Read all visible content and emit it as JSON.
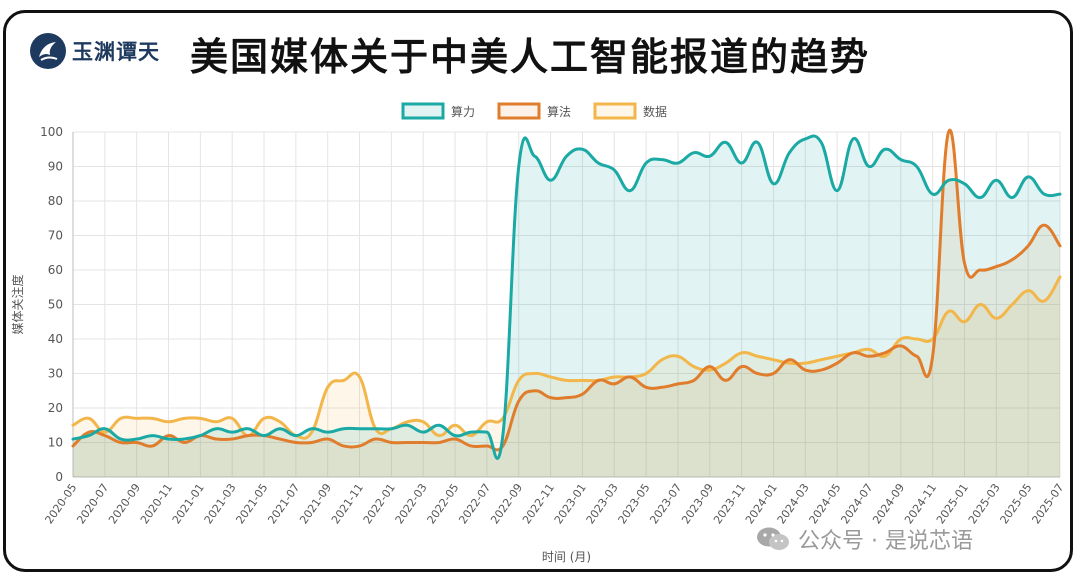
{
  "brand": {
    "name": "玉渊谭天",
    "icon": "brand-seal-icon"
  },
  "headline": "美国媒体关于中美人工智能报道的趋势",
  "watermark": {
    "text": "公众号 · 是说芯语",
    "icon": "wechat-icon"
  },
  "chart_data": {
    "type": "area",
    "title": "",
    "xlabel": "时间 (月)",
    "ylabel": "媒体关注度",
    "ylim": [
      0,
      100
    ],
    "yticks": [
      0,
      10,
      20,
      30,
      40,
      50,
      60,
      70,
      80,
      90,
      100
    ],
    "grid": true,
    "legend_position": "top-center",
    "x": [
      "2020-05",
      "2020-06",
      "2020-07",
      "2020-08",
      "2020-09",
      "2020-10",
      "2020-11",
      "2020-12",
      "2021-01",
      "2021-02",
      "2021-03",
      "2021-04",
      "2021-05",
      "2021-06",
      "2021-07",
      "2021-08",
      "2021-09",
      "2021-10",
      "2021-11",
      "2021-12",
      "2022-01",
      "2022-02",
      "2022-03",
      "2022-04",
      "2022-05",
      "2022-06",
      "2022-07",
      "2022-08",
      "2022-09",
      "2022-10",
      "2022-11",
      "2022-12",
      "2023-01",
      "2023-02",
      "2023-03",
      "2023-04",
      "2023-05",
      "2023-06",
      "2023-07",
      "2023-08",
      "2023-09",
      "2023-10",
      "2023-11",
      "2023-12",
      "2024-01",
      "2024-02",
      "2024-03",
      "2024-04",
      "2024-05",
      "2024-06",
      "2024-07",
      "2024-08",
      "2024-09",
      "2024-10",
      "2024-11",
      "2024-12",
      "2025-01",
      "2025-02",
      "2025-03",
      "2025-04",
      "2025-05",
      "2025-06",
      "2025-07"
    ],
    "xtick_labels": [
      "2020-05",
      "2020-07",
      "2020-09",
      "2020-11",
      "2021-01",
      "2021-03",
      "2021-05",
      "2021-07",
      "2021-09",
      "2021-11",
      "2022-01",
      "2022-03",
      "2022-05",
      "2022-07",
      "2022-09",
      "2022-11",
      "2023-01",
      "2023-03",
      "2023-05",
      "2023-07",
      "2023-09",
      "2023-11",
      "2024-01",
      "2024-03",
      "2024-05",
      "2024-07",
      "2024-09",
      "2024-11",
      "2025-01",
      "2025-03",
      "2025-05",
      "2025-07"
    ],
    "series": [
      {
        "name": "算力",
        "color": "#1aa9a4",
        "fill": "rgba(26,169,164,0.13)",
        "values": [
          11,
          12,
          14,
          11,
          11,
          12,
          11,
          11,
          12,
          14,
          13,
          14,
          12,
          14,
          12,
          14,
          13,
          14,
          14,
          14,
          14,
          15,
          13,
          15,
          12,
          13,
          13,
          12,
          90,
          93,
          86,
          93,
          95,
          91,
          89,
          83,
          91,
          92,
          91,
          94,
          93,
          97,
          91,
          97,
          85,
          94,
          98,
          97,
          83,
          98,
          90,
          95,
          92,
          90,
          82,
          86,
          85,
          81,
          86,
          81,
          87,
          82,
          82
        ]
      },
      {
        "name": "算法",
        "color": "#e07d2c",
        "fill": "rgba(224,125,44,0.10)",
        "values": [
          9,
          13,
          12,
          10,
          10,
          9,
          12,
          10,
          12,
          11,
          11,
          12,
          12,
          11,
          10,
          10,
          11,
          9,
          9,
          11,
          10,
          10,
          10,
          10,
          11,
          9,
          9,
          9,
          22,
          25,
          23,
          23,
          24,
          28,
          27,
          29,
          26,
          26,
          27,
          28,
          32,
          28,
          32,
          30,
          30,
          34,
          31,
          31,
          33,
          36,
          35,
          36,
          38,
          35,
          35,
          100,
          62,
          60,
          61,
          63,
          67,
          73,
          67
        ]
      },
      {
        "name": "数据",
        "color": "#f2b64a",
        "fill": "rgba(242,182,74,0.12)",
        "values": [
          15,
          17,
          13,
          17,
          17,
          17,
          16,
          17,
          17,
          16,
          17,
          12,
          17,
          16,
          12,
          13,
          26,
          28,
          29,
          14,
          14,
          16,
          16,
          12,
          15,
          12,
          16,
          17,
          28,
          30,
          29,
          28,
          28,
          28,
          29,
          29,
          30,
          34,
          35,
          32,
          31,
          33,
          36,
          35,
          34,
          33,
          33,
          34,
          35,
          36,
          37,
          35,
          40,
          40,
          40,
          48,
          45,
          50,
          46,
          50,
          54,
          51,
          58
        ]
      }
    ]
  }
}
